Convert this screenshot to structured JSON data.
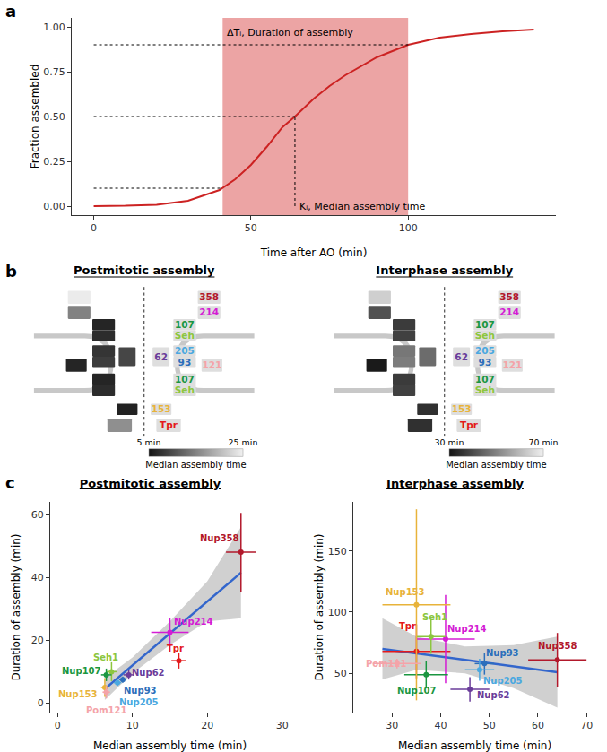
{
  "panel_labels": [
    "a",
    "b",
    "c"
  ],
  "chart_data": [
    {
      "type": "line",
      "color": "#cc2222",
      "xlabel": "Time after AO (min)",
      "ylabel": "Fraction assembled",
      "x": [
        0,
        10,
        20,
        30,
        40,
        45,
        50,
        55,
        60,
        64,
        70,
        75,
        80,
        90,
        100,
        110,
        120,
        130,
        140
      ],
      "values": [
        0.0,
        0.002,
        0.008,
        0.03,
        0.09,
        0.15,
        0.23,
        0.33,
        0.44,
        0.5,
        0.6,
        0.67,
        0.73,
        0.83,
        0.9,
        0.94,
        0.96,
        0.975,
        0.985
      ],
      "xlim": [
        -7,
        147
      ],
      "ylim": [
        -0.05,
        1.05
      ],
      "xticks": [
        0,
        50,
        100
      ],
      "yticks": [
        {
          "value": 0,
          "label": "0.00"
        },
        {
          "value": 0.25,
          "label": "0.25"
        },
        {
          "value": 0.5,
          "label": "0.50"
        },
        {
          "value": 0.75,
          "label": "0.75"
        },
        {
          "value": 1,
          "label": "1.00"
        }
      ],
      "grid": false,
      "shaded_range": [
        41,
        100
      ],
      "reference_lines": [
        {
          "y": 0.9,
          "x": [
            0,
            100
          ]
        },
        {
          "y": 0.5,
          "x": [
            0,
            64
          ]
        },
        {
          "y": 0.1,
          "x": [
            0,
            41
          ]
        },
        {
          "x": 64,
          "y": [
            0,
            0.5
          ]
        }
      ],
      "annotations": [
        {
          "text": "ΔTᵢ, Duration of assembly",
          "x": 41,
          "y": 0.97
        },
        {
          "text": "Kᵢ, Median assembly time",
          "x": 64,
          "y": 0.0
        }
      ]
    },
    {
      "type": "scatter",
      "title": "Postmitotic assembly",
      "xlabel": "Median assembly time (min)",
      "ylabel": "Duration of assembly (min)",
      "xlim": [
        -1,
        31
      ],
      "ylim": [
        -3,
        64
      ],
      "xticks": [
        0,
        10,
        20,
        30
      ],
      "yticks": [
        0,
        20,
        40,
        60
      ],
      "grid": false,
      "points": [
        {
          "label": "Nup358",
          "color": "#b2182b",
          "x": 24.5,
          "y": 48,
          "x_error": 2,
          "y_error": 12.5
        },
        {
          "label": "Tpr",
          "color": "#e31a1c",
          "x": 16.2,
          "y": 13.5,
          "x_error": 1,
          "y_error": 2.5
        },
        {
          "label": "Nup214",
          "color": "#d41cd4",
          "x": 15,
          "y": 22.5,
          "x_error": 2.5,
          "y_error": 4.5
        },
        {
          "label": "Nup62",
          "color": "#6a3d9a",
          "x": 9.5,
          "y": 9,
          "x_error": 0.7,
          "y_error": 1.5
        },
        {
          "label": "Nup93",
          "color": "#2c6fbb",
          "x": 8.7,
          "y": 7.5,
          "x_error": 0.5,
          "y_error": 1
        },
        {
          "label": "Nup205",
          "color": "#4aa8e0",
          "x": 8,
          "y": 6.5,
          "x_error": 0.5,
          "y_error": 1
        },
        {
          "label": "Seh1",
          "color": "#8cc63f",
          "x": 7.2,
          "y": 10,
          "x_error": 0.7,
          "y_error": 3
        },
        {
          "label": "Nup107",
          "color": "#1a9641",
          "x": 6.5,
          "y": 9,
          "x_error": 0.7,
          "y_error": 2
        },
        {
          "label": "Nup153",
          "color": "#e8b33a",
          "x": 6.3,
          "y": 5,
          "x_error": 0.5,
          "y_error": 3
        },
        {
          "label": "Pom121",
          "color": "#f4a3a8",
          "x": 6.5,
          "y": 3.5,
          "x_error": 0.5,
          "y_error": 2
        }
      ],
      "fit": {
        "color": "#3366cc",
        "x": [
          6.3,
          10,
          15,
          20,
          24.5
        ],
        "values": [
          4.5,
          12,
          22.2,
          32.4,
          41.5
        ],
        "lower": [
          1,
          9.5,
          18.5,
          26,
          27
        ],
        "upper": [
          8,
          14.5,
          26,
          38.8,
          56
        ]
      }
    },
    {
      "type": "scatter",
      "title": "Interphase assembly",
      "xlabel": "Median assembly time (min)",
      "ylabel": "Duration of assembly (min)",
      "xlim": [
        22,
        72
      ],
      "ylim": [
        18,
        190
      ],
      "xticks": [
        30,
        40,
        50,
        60,
        70
      ],
      "yticks": [
        50,
        100,
        150
      ],
      "grid": false,
      "points": [
        {
          "label": "Nup358",
          "color": "#b2182b",
          "x": 64,
          "y": 61,
          "x_error": 6,
          "y_error": 22
        },
        {
          "label": "Tpr",
          "color": "#e31a1c",
          "x": 35,
          "y": 68,
          "x_error": 7,
          "y_error": 22
        },
        {
          "label": "Nup214",
          "color": "#d41cd4",
          "x": 41,
          "y": 78,
          "x_error": 6,
          "y_error": 36
        },
        {
          "label": "Nup62",
          "color": "#6a3d9a",
          "x": 46,
          "y": 37,
          "x_error": 4,
          "y_error": 10
        },
        {
          "label": "Nup93",
          "color": "#2c6fbb",
          "x": 49,
          "y": 58,
          "x_error": 2,
          "y_error": 9
        },
        {
          "label": "Nup205",
          "color": "#4aa8e0",
          "x": 48,
          "y": 53,
          "x_error": 3,
          "y_error": 9
        },
        {
          "label": "Seh1",
          "color": "#8cc63f",
          "x": 38,
          "y": 80,
          "x_error": 3,
          "y_error": 14
        },
        {
          "label": "Nup107",
          "color": "#1a9641",
          "x": 37,
          "y": 49,
          "x_error": 4.5,
          "y_error": 11
        },
        {
          "label": "Nup153",
          "color": "#e8b33a",
          "x": 35,
          "y": 106,
          "x_error": 7,
          "y_error": 78
        },
        {
          "label": "Pom121",
          "color": "#f4a3a8",
          "x": 31,
          "y": 58,
          "x_error": 5,
          "y_error": 4
        }
      ],
      "fit": {
        "color": "#3366cc",
        "x": [
          28,
          35,
          45,
          55,
          64
        ],
        "values": [
          70,
          66.3,
          61,
          55.8,
          51
        ],
        "lower": [
          45,
          53,
          50,
          38,
          22
        ],
        "upper": [
          95,
          80,
          72,
          73,
          80
        ]
      }
    }
  ],
  "diagram": {
    "panels": [
      {
        "title": "Postmitotic assembly",
        "colorbar": {
          "title": "Median assembly time",
          "range": [
            5,
            25
          ],
          "ticks": [
            {
              "value": 5,
              "label": "5 min"
            },
            {
              "value": 25,
              "label": "25 min"
            }
          ]
        },
        "components": [
          {
            "label": "358",
            "color": "#b2182b",
            "value": 24.5
          },
          {
            "label": "214",
            "color": "#d41cd4",
            "value": 15
          },
          {
            "label": "107",
            "color": "#1a9641",
            "value": 6.5
          },
          {
            "label": "Seh",
            "color": "#8cc63f",
            "value": 7.2
          },
          {
            "label": "205",
            "color": "#4aa8e0",
            "value": 8
          },
          {
            "label": "93",
            "color": "#2c6fbb",
            "value": 8.7
          },
          {
            "label": "62",
            "color": "#6a3d9a",
            "value": 9.5
          },
          {
            "label": "121",
            "color": "#f4a3a8",
            "value": 6.5
          },
          {
            "label": "107",
            "color": "#1a9641",
            "value": 6.5
          },
          {
            "label": "Seh",
            "color": "#8cc63f",
            "value": 7.2
          },
          {
            "label": "153",
            "color": "#e8b33a",
            "value": 6.3
          },
          {
            "label": "Tpr",
            "color": "#e31a1c",
            "value": 16.2
          }
        ]
      },
      {
        "title": "Interphase assembly",
        "colorbar": {
          "title": "Median assembly time",
          "range": [
            30,
            70
          ],
          "ticks": [
            {
              "value": 30,
              "label": "30 min"
            },
            {
              "value": 70,
              "label": "70 min"
            }
          ]
        },
        "components": [
          {
            "label": "358",
            "color": "#b2182b",
            "value": 64
          },
          {
            "label": "214",
            "color": "#d41cd4",
            "value": 41
          },
          {
            "label": "107",
            "color": "#1a9641",
            "value": 37
          },
          {
            "label": "Seh",
            "color": "#8cc63f",
            "value": 38
          },
          {
            "label": "205",
            "color": "#4aa8e0",
            "value": 48
          },
          {
            "label": "93",
            "color": "#2c6fbb",
            "value": 49
          },
          {
            "label": "62",
            "color": "#6a3d9a",
            "value": 46
          },
          {
            "label": "121",
            "color": "#f4a3a8",
            "value": 31
          },
          {
            "label": "107",
            "color": "#1a9641",
            "value": 37
          },
          {
            "label": "Seh",
            "color": "#8cc63f",
            "value": 38
          },
          {
            "label": "153",
            "color": "#e8b33a",
            "value": 35
          },
          {
            "label": "Tpr",
            "color": "#e31a1c",
            "value": 35
          }
        ]
      }
    ]
  }
}
